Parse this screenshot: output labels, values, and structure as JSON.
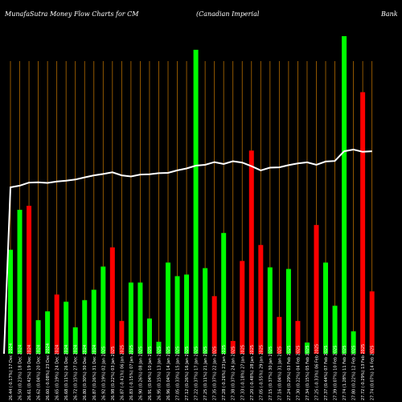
{
  "header": {
    "left": "MunafaSutra  Money Flow  Charts for CM",
    "middle": "(Canadian  Imperial",
    "right": "Bank"
  },
  "colors": {
    "background": "#000000",
    "up": "#00ff00",
    "down": "#ff0000",
    "line": "#ffffff",
    "grid": "#c87800",
    "label": "#ffffff"
  },
  "chart_data": {
    "type": "bar",
    "title": "MunafaSutra  Money Flow  Charts for CM (Canadian  Imperial Bank",
    "xlabel": "",
    "ylabel": "",
    "grid": true,
    "categories": [
      "26.44 (-0.17%) 17 Dec 2024",
      "26.50 (0.23%) 18 Dec 2024",
      "26.61 (0.42%) 19 Dec 2024",
      "26.62 (0.04%) 20 Dec 2024",
      "26.60 (-0.08%) 23 Dec 2024",
      "26.65 (0.19%) 24 Dec 2024",
      "26.68 (0.11%) 26 Dec 2024",
      "26.72 (0.15%) 27 Dec 2024",
      "26.80 (0.30%) 30 Dec 2024",
      "26.87 (0.26%) 31 Dec 2024",
      "26.92 (0.19%) 02 Jan 2025",
      "26.98 (0.22%) 03 Jan 2025",
      "26.87 (-0.41%) 06 Jan 2025",
      "26.83 (-0.15%) 07 Jan 2025",
      "26.90 (0.26%) 08 Jan 2025",
      "26.91 (0.04%) 10 Jan 2025",
      "26.95 (0.15%) 13 Jan 2025",
      "26.96 (0.04%) 14 Jan 2025",
      "27.05 (0.33%) 15 Jan 2025",
      "27.12 (0.26%) 16 Jan 2025",
      "27.22 (0.37%) 17 Jan 2025",
      "27.25 (0.11%) 21 Jan 2025",
      "27.35 (0.37%) 22 Jan 2025",
      "27.28 (-0.26%) 23 Jan 2025",
      "27.38 (0.37%) 24 Jan 2025",
      "27.33 (-0.18%) 27 Jan 2025",
      "27.20 (-0.48%) 28 Jan 2025",
      "27.05 (-0.55%) 29 Jan 2025",
      "27.15 (0.37%) 30 Jan 2025",
      "27.16 (0.04%) 31 Jan 2025",
      "27.24 (0.29%) 03 Feb 2025",
      "27.30 (0.22%) 04 Feb 2025",
      "27.34 (0.15%) 05 Feb 2025",
      "27.25 (-0.33%) 06 Feb 2025",
      "27.37 (0.44%) 07 Feb 2025",
      "27.39 (0.07%) 10 Feb 2025",
      "27.74 (1.28%) 11 Feb 2025",
      "27.80 (0.22%) 12 Feb 2025",
      "27.72 (-0.29%) 13 Feb 2025",
      "27.74 (0.07%) 14 Feb 2025"
    ],
    "labels": [
      "26.44 (-0.17%) 17 Dec 2024",
      "26.50 (0.23%) 18 Dec 2024",
      "26.61 (0.42%) 19 Dec 2024",
      "26.62 (0.04%) 20 Dec 2024",
      "26.60 (-0.08%) 23 Dec 2024",
      "26.65 (0.19%) 24 Dec 2024",
      "26.68 (0.11%) 26 Dec 2024",
      "26.72 (0.15%) 27 Dec 2024",
      "26.80 (0.30%) 30 Dec 2024",
      "26.87 (0.26%) 31 Dec 2024",
      "26.92 (0.19%) 02 Jan 2025",
      "26.98 (0.22%) 03 Jan 2025",
      "26.87 (-0.41%) 06 Jan 2025",
      "26.83 (-0.15%) 07 Jan 2025",
      "26.90 (0.26%) 08 Jan 2025",
      "26.91 (0.04%) 10 Jan 2025",
      "26.95 (0.15%) 13 Jan 2025",
      "26.96 (0.04%) 14 Jan 2025",
      "27.05 (0.33%) 15 Jan 2025",
      "27.12 (0.26%) 16 Jan 2025",
      "27.22 (0.37%) 17 Jan 2025",
      "27.25 (0.11%) 21 Jan 2025",
      "27.35 (0.37%) 22 Jan 2025",
      "27.28 (-0.26%) 23 Jan 2025",
      "27.38 (0.37%) 24 Jan 2025",
      "27.33 (-0.18%) 27 Jan 2025",
      "27.20 (-0.48%) 28 Jan 2025",
      "27.05 (-0.55%) 29 Jan 2025",
      "27.15 (0.37%) 30 Jan 2025",
      "27.16 (0.04%) 31 Jan 2025",
      "27.24 (0.29%) 03 Feb 2025",
      "27.30 (0.22%) 04 Feb 2025",
      "27.34 (0.15%) 05 Feb 2025",
      "27.25 (-0.33%) 06 Feb 2025",
      "27.37 (0.44%) 07 Feb 2025",
      "27.39 (0.07%) 10 Feb 2025",
      "27.74 (1.28%) 11 Feb 2025",
      "27.80 (0.22%) 12 Feb 2025",
      "27.72 (-0.29%) 13 Feb 2025",
      "27.74 (0.07%) 14 Feb 2025"
    ],
    "bars": [
      {
        "value": 130,
        "dir": "up"
      },
      {
        "value": 180,
        "dir": "up"
      },
      {
        "value": 185,
        "dir": "down"
      },
      {
        "value": 42,
        "dir": "up"
      },
      {
        "value": 53,
        "dir": "up"
      },
      {
        "value": 74,
        "dir": "down"
      },
      {
        "value": 65,
        "dir": "up"
      },
      {
        "value": 33,
        "dir": "up"
      },
      {
        "value": 67,
        "dir": "up"
      },
      {
        "value": 80,
        "dir": "up"
      },
      {
        "value": 109,
        "dir": "up"
      },
      {
        "value": 133,
        "dir": "down"
      },
      {
        "value": 41,
        "dir": "down"
      },
      {
        "value": 89,
        "dir": "up"
      },
      {
        "value": 89,
        "dir": "up"
      },
      {
        "value": 44,
        "dir": "up"
      },
      {
        "value": 15,
        "dir": "up"
      },
      {
        "value": 114,
        "dir": "up"
      },
      {
        "value": 97,
        "dir": "up"
      },
      {
        "value": 99,
        "dir": "up"
      },
      {
        "value": 380,
        "dir": "up"
      },
      {
        "value": 107,
        "dir": "up"
      },
      {
        "value": 72,
        "dir": "down"
      },
      {
        "value": 151,
        "dir": "up"
      },
      {
        "value": 16,
        "dir": "down"
      },
      {
        "value": 116,
        "dir": "down"
      },
      {
        "value": 254,
        "dir": "down"
      },
      {
        "value": 136,
        "dir": "down"
      },
      {
        "value": 108,
        "dir": "up"
      },
      {
        "value": 46,
        "dir": "down"
      },
      {
        "value": 106,
        "dir": "up"
      },
      {
        "value": 41,
        "dir": "down"
      },
      {
        "value": 14,
        "dir": "up"
      },
      {
        "value": 161,
        "dir": "down"
      },
      {
        "value": 114,
        "dir": "up"
      },
      {
        "value": 60,
        "dir": "up"
      },
      {
        "value": 397,
        "dir": "up"
      },
      {
        "value": 28,
        "dir": "up"
      },
      {
        "value": 327,
        "dir": "down"
      },
      {
        "value": 78,
        "dir": "down"
      }
    ],
    "line": [
      26.44,
      26.5,
      26.61,
      26.62,
      26.6,
      26.65,
      26.68,
      26.72,
      26.8,
      26.87,
      26.92,
      26.98,
      26.87,
      26.83,
      26.9,
      26.91,
      26.95,
      26.96,
      27.05,
      27.12,
      27.22,
      27.25,
      27.35,
      27.28,
      27.38,
      27.33,
      27.2,
      27.05,
      27.15,
      27.16,
      27.24,
      27.3,
      27.34,
      27.25,
      27.37,
      27.39,
      27.74,
      27.8,
      27.72,
      27.74
    ]
  }
}
